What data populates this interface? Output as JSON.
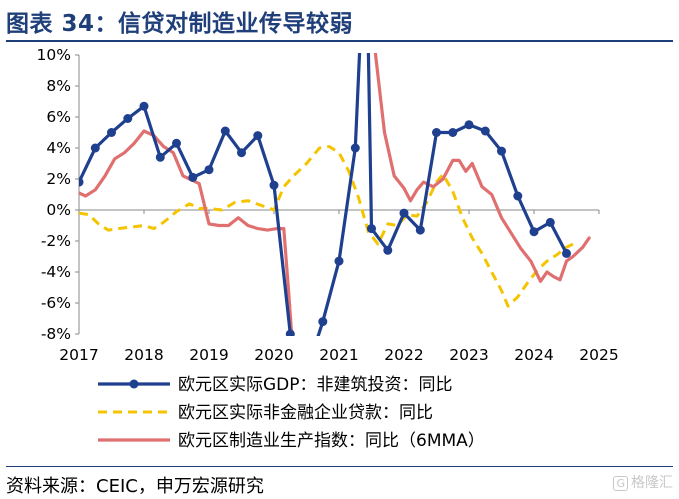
{
  "figure": {
    "title": "图表 34：信贷对制造业传导较弱",
    "source": "资料来源：CEIC，申万宏源研究",
    "watermark": "格隆汇",
    "watermark_logo": "G"
  },
  "chart_data": {
    "type": "line",
    "x_axis": {
      "min": 2017,
      "max": 2025,
      "ticks": [
        "2017",
        "2018",
        "2019",
        "2020",
        "2021",
        "2022",
        "2023",
        "2024",
        "2025"
      ]
    },
    "y_axis": {
      "min": -8,
      "max": 10,
      "ticks": [
        "10%",
        "8%",
        "6%",
        "4%",
        "2%",
        "0%",
        "-2%",
        "-4%",
        "-6%",
        "-8%"
      ]
    },
    "grid": false,
    "legend_position": "bottom",
    "series": [
      {
        "name": "欧元区实际GDP：非建筑投资：同比",
        "color": "#1f3f8f",
        "style": "solid-markers",
        "points": [
          [
            2017.0,
            1.8
          ],
          [
            2017.25,
            4.0
          ],
          [
            2017.5,
            5.0
          ],
          [
            2017.75,
            5.9
          ],
          [
            2018.0,
            6.7
          ],
          [
            2018.25,
            3.4
          ],
          [
            2018.5,
            4.3
          ],
          [
            2018.75,
            2.1
          ],
          [
            2019.0,
            2.6
          ],
          [
            2019.25,
            5.1
          ],
          [
            2019.5,
            3.7
          ],
          [
            2019.75,
            4.8
          ],
          [
            2020.0,
            1.6
          ],
          [
            2020.25,
            -8.0
          ],
          [
            2020.28,
            -8.5
          ]
        ],
        "points_segment2": [
          [
            2020.65,
            -8.5
          ],
          [
            2020.75,
            -7.2
          ],
          [
            2021.0,
            -3.3
          ],
          [
            2021.25,
            4.0
          ],
          [
            2021.32,
            10.5
          ]
        ],
        "points_segment3": [
          [
            2021.45,
            10.5
          ],
          [
            2021.5,
            -1.2
          ],
          [
            2021.75,
            -2.6
          ],
          [
            2022.0,
            -0.2
          ],
          [
            2022.25,
            -1.3
          ],
          [
            2022.5,
            5.0
          ],
          [
            2022.75,
            5.0
          ],
          [
            2023.0,
            5.5
          ],
          [
            2023.25,
            5.1
          ],
          [
            2023.5,
            3.8
          ],
          [
            2023.75,
            0.9
          ],
          [
            2024.0,
            -1.4
          ],
          [
            2024.25,
            -0.8
          ],
          [
            2024.5,
            -2.8
          ]
        ]
      },
      {
        "name": "欧元区实际非金融企业贷款：同比",
        "color": "#f5c400",
        "style": "dashed",
        "points": [
          [
            2017.0,
            -0.2
          ],
          [
            2017.15,
            -0.3
          ],
          [
            2017.3,
            -0.9
          ],
          [
            2017.45,
            -1.3
          ],
          [
            2017.6,
            -1.2
          ],
          [
            2017.8,
            -1.1
          ],
          [
            2018.0,
            -1.0
          ],
          [
            2018.15,
            -1.2
          ],
          [
            2018.3,
            -0.8
          ],
          [
            2018.5,
            -0.1
          ],
          [
            2018.7,
            0.4
          ],
          [
            2018.85,
            0.1
          ],
          [
            2019.0,
            0.1
          ],
          [
            2019.2,
            0.0
          ],
          [
            2019.4,
            0.5
          ],
          [
            2019.6,
            0.6
          ],
          [
            2019.8,
            0.3
          ],
          [
            2020.0,
            0.0
          ],
          [
            2020.15,
            1.5
          ],
          [
            2020.3,
            2.2
          ],
          [
            2020.5,
            3.0
          ],
          [
            2020.7,
            4.0
          ],
          [
            2020.85,
            4.1
          ],
          [
            2021.0,
            3.7
          ],
          [
            2021.15,
            2.5
          ],
          [
            2021.3,
            0.8
          ],
          [
            2021.45,
            -1.4
          ],
          [
            2021.6,
            -2.2
          ],
          [
            2021.75,
            -0.9
          ],
          [
            2021.9,
            -1.0
          ],
          [
            2022.05,
            -0.3
          ],
          [
            2022.2,
            -0.4
          ],
          [
            2022.35,
            0.5
          ],
          [
            2022.5,
            1.8
          ],
          [
            2022.6,
            2.3
          ],
          [
            2022.75,
            1.2
          ],
          [
            2022.9,
            -0.5
          ],
          [
            2023.05,
            -1.8
          ],
          [
            2023.2,
            -2.8
          ],
          [
            2023.35,
            -4.0
          ],
          [
            2023.5,
            -5.2
          ],
          [
            2023.6,
            -6.2
          ],
          [
            2023.75,
            -5.6
          ],
          [
            2023.9,
            -4.7
          ],
          [
            2024.05,
            -3.9
          ],
          [
            2024.2,
            -3.3
          ],
          [
            2024.35,
            -2.9
          ],
          [
            2024.5,
            -2.4
          ],
          [
            2024.6,
            -2.2
          ]
        ]
      },
      {
        "name": "欧元区制造业生产指数：同比（6MMA）",
        "color": "#e07070",
        "style": "solid",
        "points": [
          [
            2017.0,
            1.1
          ],
          [
            2017.1,
            0.9
          ],
          [
            2017.25,
            1.3
          ],
          [
            2017.4,
            2.2
          ],
          [
            2017.55,
            3.3
          ],
          [
            2017.7,
            3.7
          ],
          [
            2017.85,
            4.3
          ],
          [
            2018.0,
            5.1
          ],
          [
            2018.15,
            4.8
          ],
          [
            2018.3,
            4.1
          ],
          [
            2018.45,
            3.7
          ],
          [
            2018.6,
            2.2
          ],
          [
            2018.75,
            1.9
          ],
          [
            2018.85,
            1.7
          ],
          [
            2019.0,
            -0.9
          ],
          [
            2019.15,
            -1.0
          ],
          [
            2019.3,
            -1.0
          ],
          [
            2019.45,
            -0.5
          ],
          [
            2019.6,
            -1.0
          ],
          [
            2019.75,
            -1.2
          ],
          [
            2019.9,
            -1.3
          ],
          [
            2020.05,
            -1.2
          ],
          [
            2020.15,
            -1.2
          ],
          [
            2020.22,
            -5.0
          ],
          [
            2020.28,
            -8.5
          ]
        ],
        "points_segment2": [
          [
            2021.18,
            10.5
          ],
          [
            2021.28,
            10.5
          ]
        ],
        "points_segment3": [
          [
            2021.55,
            10.5
          ],
          [
            2021.7,
            5.0
          ],
          [
            2021.85,
            2.2
          ],
          [
            2022.0,
            1.4
          ],
          [
            2022.1,
            0.6
          ],
          [
            2022.2,
            1.3
          ],
          [
            2022.3,
            1.8
          ],
          [
            2022.45,
            1.5
          ],
          [
            2022.6,
            2.0
          ],
          [
            2022.75,
            3.2
          ],
          [
            2022.85,
            3.2
          ],
          [
            2022.95,
            2.5
          ],
          [
            2023.05,
            3.0
          ],
          [
            2023.2,
            1.5
          ],
          [
            2023.35,
            1.0
          ],
          [
            2023.5,
            -0.5
          ],
          [
            2023.65,
            -1.5
          ],
          [
            2023.8,
            -2.5
          ],
          [
            2023.95,
            -3.3
          ],
          [
            2024.1,
            -4.6
          ],
          [
            2024.2,
            -4.0
          ],
          [
            2024.3,
            -4.3
          ],
          [
            2024.4,
            -4.5
          ],
          [
            2024.5,
            -3.3
          ],
          [
            2024.6,
            -3.0
          ],
          [
            2024.75,
            -2.4
          ],
          [
            2024.85,
            -1.8
          ]
        ]
      }
    ]
  }
}
